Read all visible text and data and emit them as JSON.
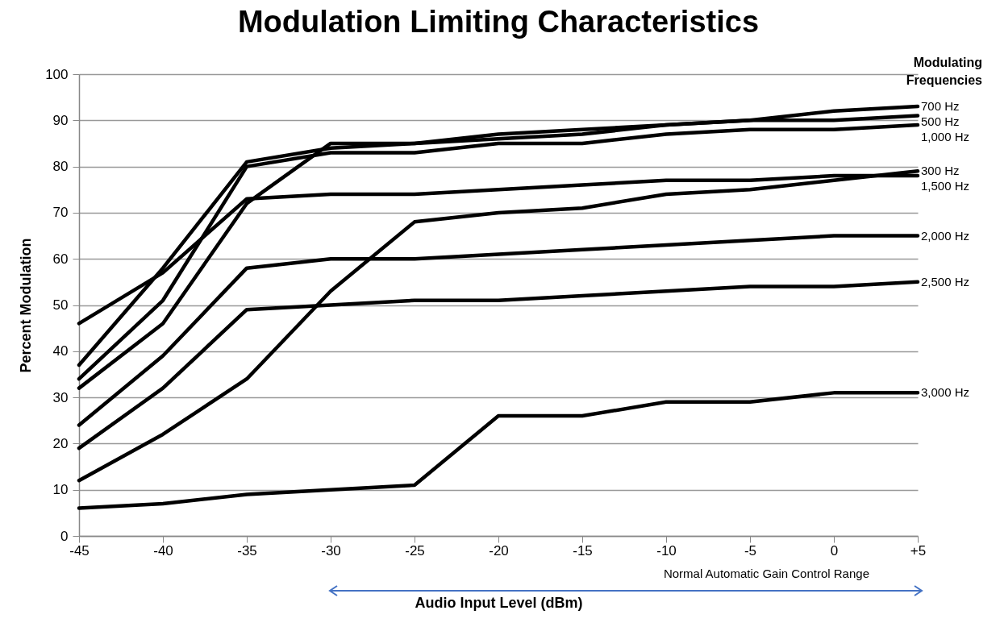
{
  "chart_data": {
    "type": "line",
    "title": "Modulation Limiting Characteristics",
    "xlabel": "Audio Input Level (dBm)",
    "ylabel": "Percent Modulation",
    "legend_title": "Modulating Frequencies",
    "x": [
      -45,
      -40,
      -35,
      -30,
      -25,
      -20,
      -15,
      -10,
      -5,
      0,
      5
    ],
    "series": [
      {
        "name": "700 Hz",
        "color": "#000000",
        "values": [
          37,
          58,
          81,
          84,
          85,
          86,
          87,
          89,
          90,
          92,
          93
        ]
      },
      {
        "name": "500 Hz",
        "color": "#000000",
        "values": [
          32,
          46,
          72,
          85,
          85,
          87,
          88,
          89,
          90,
          90,
          91
        ]
      },
      {
        "name": "1,000 Hz",
        "color": "#000000",
        "values": [
          34,
          51,
          80,
          83,
          83,
          85,
          85,
          87,
          88,
          88,
          89
        ]
      },
      {
        "name": "300 Hz",
        "color": "#000000",
        "values": [
          12,
          22,
          34,
          53,
          68,
          70,
          71,
          74,
          75,
          77,
          79
        ]
      },
      {
        "name": "1,500 Hz",
        "color": "#000000",
        "values": [
          46,
          57,
          73,
          74,
          74,
          75,
          76,
          77,
          77,
          78,
          78
        ]
      },
      {
        "name": "2,000 Hz",
        "color": "#000000",
        "values": [
          24,
          39,
          58,
          60,
          60,
          61,
          62,
          63,
          64,
          65,
          65
        ]
      },
      {
        "name": "2,500 Hz",
        "color": "#000000",
        "values": [
          19,
          32,
          49,
          50,
          51,
          51,
          52,
          53,
          54,
          54,
          55
        ]
      },
      {
        "name": "3,000 Hz",
        "color": "#000000",
        "values": [
          6,
          7,
          9,
          10,
          11,
          26,
          26,
          29,
          29,
          31,
          31
        ]
      }
    ],
    "xlim": [
      -45,
      5
    ],
    "xticks": [
      -45,
      -40,
      -35,
      -30,
      -25,
      -20,
      -15,
      -10,
      -5,
      0,
      {
        "value": 5,
        "label": "+5"
      }
    ],
    "ylim": [
      0,
      100
    ],
    "yticks": [
      0,
      10,
      20,
      30,
      40,
      50,
      60,
      70,
      80,
      90,
      100
    ],
    "annotations": [
      "Normal Automatic Gain Control Range"
    ],
    "grid": "y",
    "legend": false,
    "marker": "none",
    "line_style": "solid"
  }
}
